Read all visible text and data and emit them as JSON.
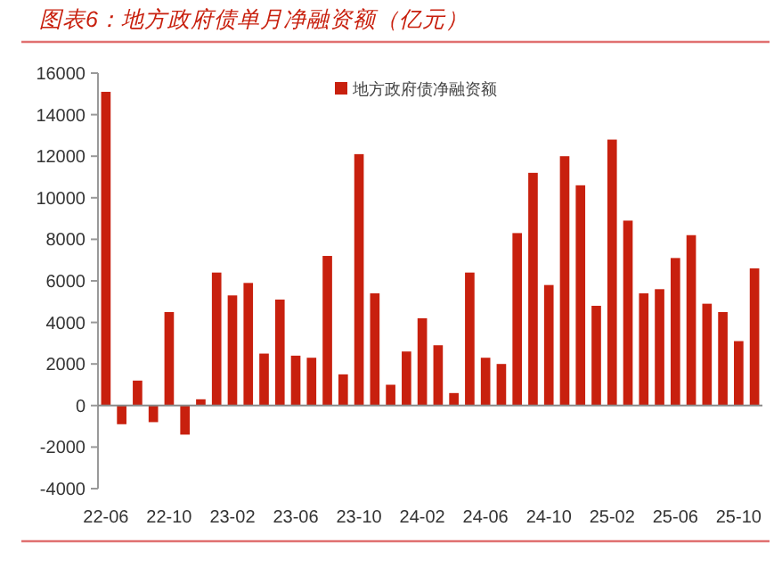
{
  "chart_data": {
    "type": "bar",
    "title": "图表6：地方政府债单月净融资额（亿元）",
    "categories": [
      "22-06",
      null,
      null,
      null,
      "22-10",
      null,
      null,
      null,
      "23-02",
      null,
      null,
      null,
      "23-06",
      null,
      null,
      null,
      "23-10",
      null,
      null,
      null,
      "24-02",
      null,
      null,
      null,
      "24-06",
      null,
      null,
      null,
      "24-10",
      null,
      null,
      null,
      "25-02",
      null,
      null,
      null,
      "25-06",
      null,
      null,
      null,
      "25-10",
      null
    ],
    "series": [
      {
        "name": "地方政府债净融资额",
        "color": "#c8200e",
        "values": [
          15100,
          -900,
          1200,
          -800,
          4500,
          -1400,
          300,
          6400,
          5300,
          5900,
          2500,
          5100,
          2400,
          2300,
          7200,
          1500,
          12100,
          5400,
          1000,
          2600,
          4200,
          2900,
          600,
          6400,
          2300,
          2000,
          8300,
          11200,
          5800,
          12000,
          10600,
          4800,
          12800,
          8900,
          5400,
          5600,
          7100,
          8200,
          4900,
          4500,
          3100,
          6600
        ]
      }
    ],
    "ylim": [
      -4000,
      16000
    ],
    "yticks": [
      -4000,
      -2000,
      0,
      2000,
      4000,
      6000,
      8000,
      10000,
      12000,
      14000,
      16000
    ],
    "legend": "top"
  }
}
